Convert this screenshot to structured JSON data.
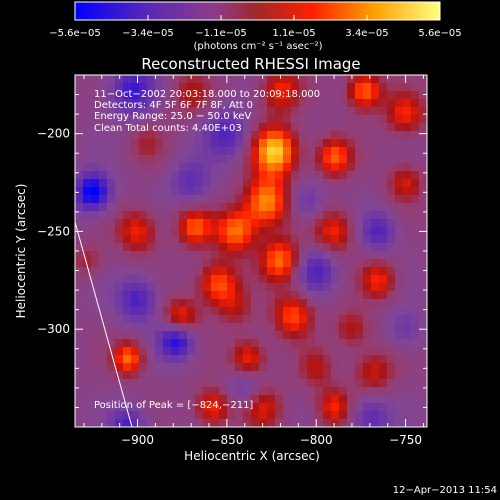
{
  "chart_data": {
    "type": "heatmap",
    "title": "Reconstructed RHESSI Image",
    "xlabel": "Heliocentric X (arcsec)",
    "ylabel": "Heliocentric Y (arcsec)",
    "xlim": [
      -935,
      -738
    ],
    "ylim": [
      -350,
      -170
    ],
    "x_ticks": [
      -900,
      -850,
      -800,
      -750
    ],
    "x_tick_labels": [
      "−900",
      "−850",
      "−800",
      "−750"
    ],
    "y_ticks": [
      -200,
      -250,
      -300
    ],
    "y_tick_labels": [
      "−200",
      "−250",
      "−300"
    ],
    "colorbar": {
      "range": [
        -5.6e-05,
        5.6e-05
      ],
      "tick_labels": [
        "−5.6e−05",
        "−3.4e−05",
        "−1.1e−05",
        "1.1e−05",
        "3.4e−05",
        "5.6e−05"
      ],
      "label": "(photons cm⁻² s⁻¹ asec⁻²)"
    },
    "annotations": [
      "11−Oct−2002 20:03:18.000 to 20:09:18.000",
      "Detectors: 4F 5F 6F 7F 8F, Att 0",
      "Energy Range: 25.0 − 50.0 keV",
      "Clean     Total counts: 4.40E+03"
    ],
    "peak_label": "Position of Peak = [−824,−211]",
    "peak": [
      -824,
      -211
    ],
    "blobs": [
      {
        "x": -823,
        "y": -209,
        "v": 1.0,
        "s": 9
      },
      {
        "x": -828,
        "y": -235,
        "v": 0.85,
        "s": 9
      },
      {
        "x": -820,
        "y": -265,
        "v": 0.75,
        "s": 8
      },
      {
        "x": -813,
        "y": -293,
        "v": 0.65,
        "s": 8
      },
      {
        "x": -845,
        "y": -250,
        "v": 0.75,
        "s": 8
      },
      {
        "x": -855,
        "y": -277,
        "v": 0.7,
        "s": 8
      },
      {
        "x": -838,
        "y": -315,
        "v": 0.6,
        "s": 7
      },
      {
        "x": -868,
        "y": -248,
        "v": 0.65,
        "s": 7
      },
      {
        "x": -876,
        "y": -295,
        "v": 0.7,
        "s": 7
      },
      {
        "x": -900,
        "y": -250,
        "v": 0.55,
        "s": 8
      },
      {
        "x": -905,
        "y": -315,
        "v": 0.75,
        "s": 6
      },
      {
        "x": -858,
        "y": -340,
        "v": 0.6,
        "s": 7
      },
      {
        "x": -830,
        "y": -340,
        "v": 0.45,
        "s": 8
      },
      {
        "x": -790,
        "y": -212,
        "v": 0.7,
        "s": 7
      },
      {
        "x": -790,
        "y": -250,
        "v": 0.55,
        "s": 8
      },
      {
        "x": -790,
        "y": -340,
        "v": 0.55,
        "s": 7
      },
      {
        "x": -768,
        "y": -322,
        "v": 0.45,
        "s": 8
      },
      {
        "x": -765,
        "y": -275,
        "v": 0.55,
        "s": 7
      },
      {
        "x": -750,
        "y": -225,
        "v": 0.45,
        "s": 7
      },
      {
        "x": -750,
        "y": -190,
        "v": 0.55,
        "s": 8
      },
      {
        "x": -773,
        "y": -178,
        "v": 0.75,
        "s": 7
      },
      {
        "x": -820,
        "y": -178,
        "v": 0.55,
        "s": 8
      },
      {
        "x": -870,
        "y": -180,
        "v": 0.35,
        "s": 8
      },
      {
        "x": -895,
        "y": -205,
        "v": 0.25,
        "s": 7
      },
      {
        "x": -780,
        "y": -300,
        "v": 0.4,
        "s": 7
      },
      {
        "x": -800,
        "y": -320,
        "v": 0.35,
        "s": 7
      },
      {
        "x": -928,
        "y": -265,
        "v": 0.3,
        "s": 6
      },
      {
        "x": -845,
        "y": -290,
        "v": 0.3,
        "s": 7
      },
      {
        "x": -925,
        "y": -230,
        "v": -0.9,
        "s": 7
      },
      {
        "x": -878,
        "y": -305,
        "v": -0.85,
        "s": 7
      },
      {
        "x": -903,
        "y": -178,
        "v": -0.6,
        "s": 9
      },
      {
        "x": -850,
        "y": -200,
        "v": -0.5,
        "s": 9
      },
      {
        "x": -870,
        "y": -225,
        "v": -0.4,
        "s": 8
      },
      {
        "x": -800,
        "y": -270,
        "v": -0.5,
        "s": 8
      },
      {
        "x": -900,
        "y": -285,
        "v": -0.55,
        "s": 8
      },
      {
        "x": -905,
        "y": -350,
        "v": -0.55,
        "s": 7
      },
      {
        "x": -765,
        "y": -250,
        "v": -0.5,
        "s": 7
      },
      {
        "x": -770,
        "y": -345,
        "v": -0.45,
        "s": 8
      },
      {
        "x": -805,
        "y": -235,
        "v": -0.35,
        "s": 7
      },
      {
        "x": -840,
        "y": -330,
        "v": -0.35,
        "s": 7
      },
      {
        "x": -750,
        "y": -300,
        "v": -0.3,
        "s": 7
      }
    ]
  },
  "footer": {
    "date": "12−Apr−2013 11:54"
  }
}
